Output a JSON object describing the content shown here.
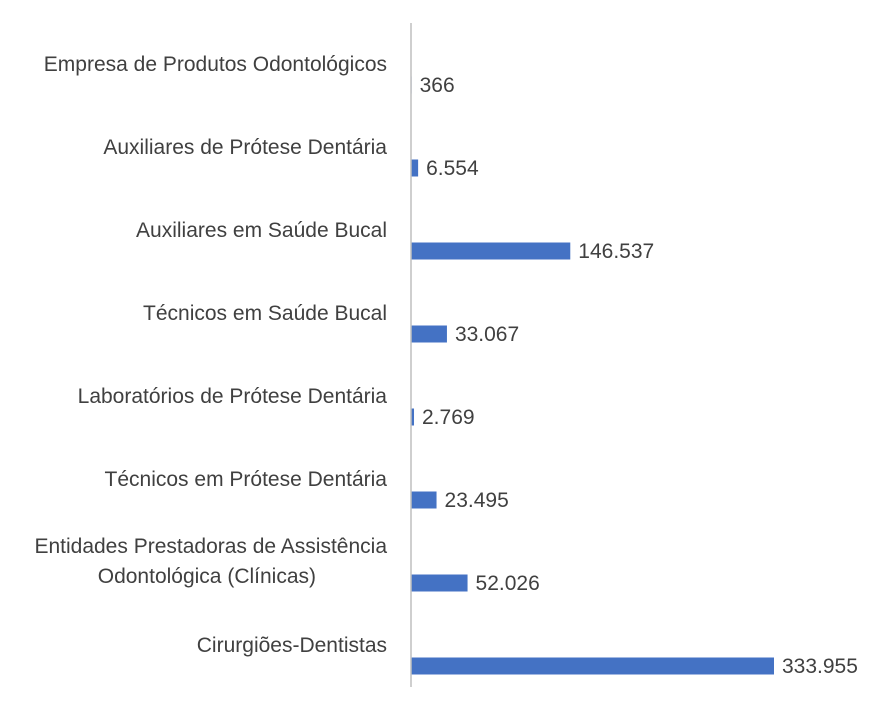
{
  "chart_data": {
    "type": "bar",
    "orientation": "horizontal",
    "categories": [
      "Empresa de Produtos Odontológicos",
      "Auxiliares de Prótese Dentária",
      "Auxiliares em Saúde Bucal",
      "Técnicos em Saúde Bucal",
      "Laboratórios de Prótese Dentária",
      "Técnicos em Prótese Dentária",
      "Entidades Prestadoras de Assistência Odontológica (Clínicas)",
      "Cirurgiões-Dentistas"
    ],
    "category_lines": [
      [
        "Empresa de Produtos Odontológicos"
      ],
      [
        "Auxiliares de Prótese Dentária"
      ],
      [
        "Auxiliares em Saúde Bucal"
      ],
      [
        "Técnicos em Saúde Bucal"
      ],
      [
        "Laboratórios de Prótese Dentária"
      ],
      [
        "Técnicos em Prótese Dentária"
      ],
      [
        "Entidades Prestadoras de Assistência",
        "Odontológica (Clínicas)"
      ],
      [
        "Cirurgiões-Dentistas"
      ]
    ],
    "values": [
      366,
      6554,
      146537,
      33067,
      2769,
      23495,
      52026,
      333955
    ],
    "value_labels": [
      "366",
      "6.554",
      "146.537",
      "33.067",
      "2.769",
      "23.495",
      "52.026",
      "333.955"
    ],
    "title": "",
    "xlabel": "",
    "ylabel": "",
    "xlim": [
      0,
      333955
    ],
    "grid": false,
    "legend": "none",
    "bar_color": "#4472c4",
    "text_color": "#404040",
    "axis_color": "#bfbfbf"
  }
}
